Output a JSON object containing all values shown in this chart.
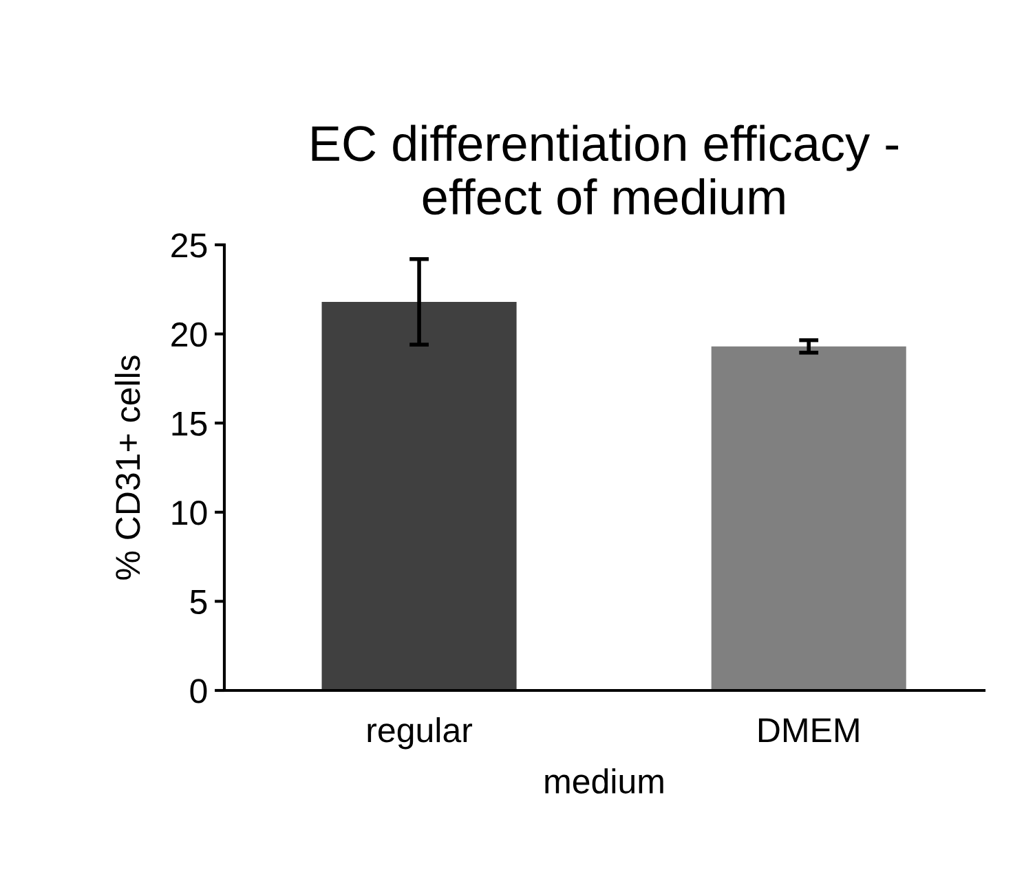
{
  "chart_data": {
    "type": "bar",
    "title": "EC differentiation efficacy -\neffect of medium",
    "xlabel": "medium",
    "ylabel": "% CD31+ cells",
    "categories": [
      "regular",
      "DMEM"
    ],
    "values": [
      21.8,
      19.3
    ],
    "errors": [
      2.4,
      0.35
    ],
    "colors": [
      "#404040",
      "#808080"
    ],
    "ylim": [
      0,
      25
    ],
    "yticks": [
      0,
      5,
      10,
      15,
      20,
      25
    ],
    "grid": false,
    "legend": false
  }
}
